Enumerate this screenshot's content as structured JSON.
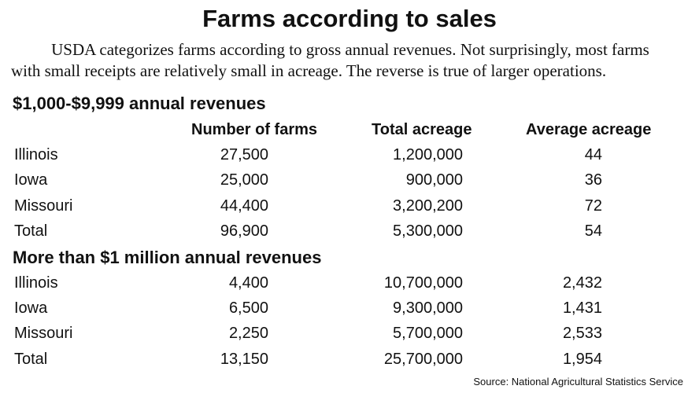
{
  "chart_data": {
    "type": "table",
    "title": "Farms according to sales",
    "subtitle": [
      "USDA categorizes farms according to gross annual revenues. Not surprisingly, most farms",
      "with small receipts are relatively small in acreage. The reverse is true of larger operations."
    ],
    "columns": [
      "Number of farms",
      "Total acreage",
      "Average acreage"
    ],
    "sections": [
      {
        "title": "$1,000-$9,999 annual revenues",
        "rows": [
          {
            "label": "Illinois",
            "values": [
              "27,500",
              "1,200,000",
              "44"
            ]
          },
          {
            "label": "Iowa",
            "values": [
              "25,000",
              "900,000",
              "36"
            ]
          },
          {
            "label": "Missouri",
            "values": [
              "44,400",
              "3,200,200",
              "72"
            ]
          },
          {
            "label": "Total",
            "values": [
              "96,900",
              "5,300,000",
              "54"
            ]
          }
        ]
      },
      {
        "title": "More than $1 million annual revenues",
        "rows": [
          {
            "label": "Illinois",
            "values": [
              "4,400",
              "10,700,000",
              "2,432"
            ]
          },
          {
            "label": "Iowa",
            "values": [
              "6,500",
              "9,300,000",
              "1,431"
            ]
          },
          {
            "label": "Missouri",
            "values": [
              "2,250",
              "5,700,000",
              "2,533"
            ]
          },
          {
            "label": "Total",
            "values": [
              "13,150",
              "25,700,000",
              "1,954"
            ]
          }
        ]
      }
    ],
    "source": "Source: National Agricultural Statistics Service"
  }
}
